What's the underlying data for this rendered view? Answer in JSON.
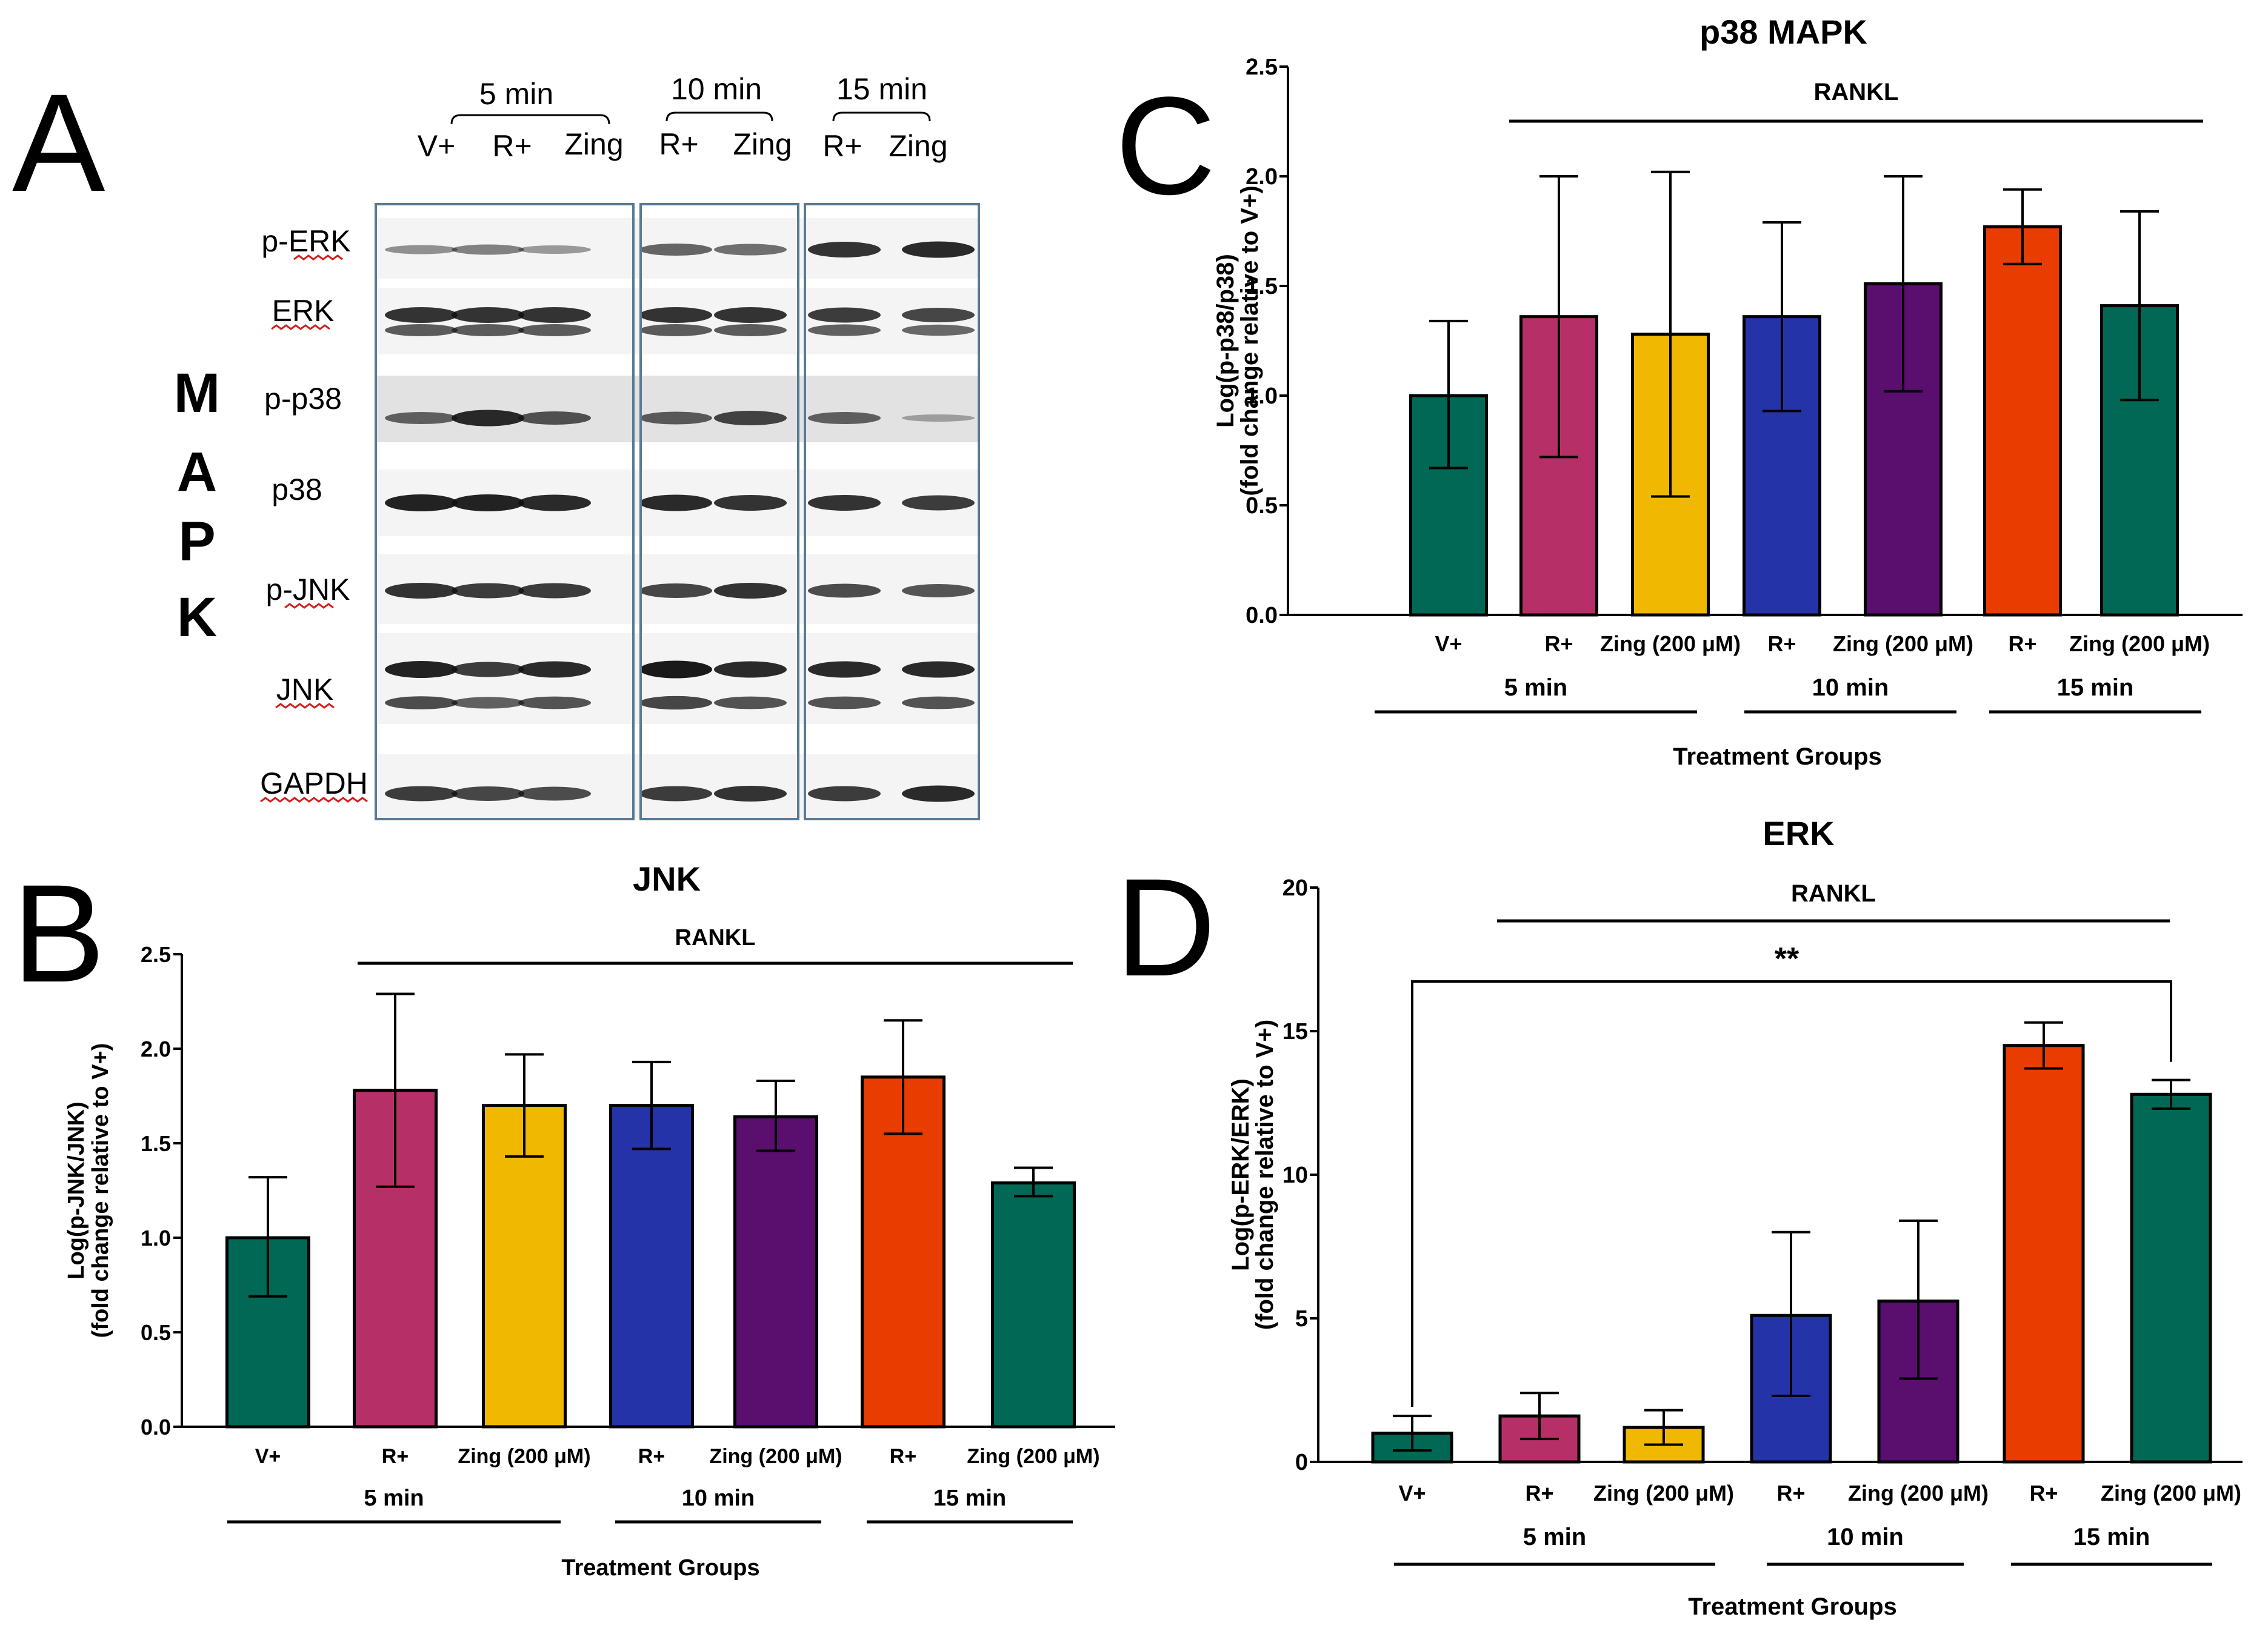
{
  "figure_type": "Western blot and bar chart panel figure",
  "panels": {
    "A": "A",
    "B": "B",
    "C": "C",
    "D": "D"
  },
  "blot": {
    "side_label": [
      "M",
      "A",
      "P",
      "K"
    ],
    "time_groups": [
      {
        "label": "5 min",
        "lanes": [
          "V+",
          "R+",
          "Zing"
        ]
      },
      {
        "label": "10 min",
        "lanes": [
          "R+",
          "Zing"
        ]
      },
      {
        "label": "15 min",
        "lanes": [
          "R+",
          "Zing"
        ]
      }
    ],
    "rows": [
      "p-ERK",
      "ERK",
      "p-p38",
      "p38",
      "p-JNK",
      "JNK",
      "GAPDH"
    ],
    "colors": {
      "band": "#111111",
      "frame": "#5a7a94"
    }
  },
  "chart_data": [
    {
      "id": "C",
      "type": "bar",
      "title": "p38 MAPK",
      "ylabel": "Log(p-p38/p38)",
      "ylabel2": "(fold change relative to V+)",
      "xlabel": "Treatment Groups",
      "bracket": "RANKL",
      "categories": [
        "V+",
        "R+",
        "Zing (200 μM)",
        "R+",
        "Zing (200 μM)",
        "R+",
        "Zing (200 μM)"
      ],
      "values": [
        1.0,
        1.36,
        1.28,
        1.36,
        1.51,
        1.77,
        1.41
      ],
      "err_low": [
        0.67,
        0.72,
        0.54,
        0.93,
        1.02,
        1.6,
        0.98
      ],
      "err_high": [
        1.34,
        2.0,
        2.02,
        1.79,
        2.0,
        1.94,
        1.84
      ],
      "colors": [
        "#006854",
        "#b63067",
        "#f0b800",
        "#2434a8",
        "#5a0e6e",
        "#e83c00",
        "#006854"
      ],
      "ylim": [
        0,
        2.5
      ],
      "yticks": [
        "0.0",
        "0.5",
        "1.0",
        "1.5",
        "2.0",
        "2.5"
      ],
      "time_groups": [
        {
          "label": "5 min",
          "from": 0,
          "to": 2
        },
        {
          "label": "10 min",
          "from": 3,
          "to": 4
        },
        {
          "label": "15 min",
          "from": 5,
          "to": 6
        }
      ]
    },
    {
      "id": "B",
      "type": "bar",
      "title": "JNK",
      "ylabel": "Log(p-JNK/JNK)",
      "ylabel2": "(fold change relative to V+)",
      "xlabel": "Treatment Groups",
      "bracket": "RANKL",
      "categories": [
        "V+",
        "R+",
        "Zing (200 μM)",
        "R+",
        "Zing (200 μM)",
        "R+",
        "Zing (200 μM)"
      ],
      "values": [
        1.0,
        1.78,
        1.7,
        1.7,
        1.64,
        1.85,
        1.29
      ],
      "err_low": [
        0.69,
        1.27,
        1.43,
        1.47,
        1.46,
        1.55,
        1.22
      ],
      "err_high": [
        1.32,
        2.29,
        1.97,
        1.93,
        1.83,
        2.15,
        1.37
      ],
      "colors": [
        "#006854",
        "#b63067",
        "#f0b800",
        "#2434a8",
        "#5a0e6e",
        "#e83c00",
        "#006854"
      ],
      "ylim": [
        0,
        2.5
      ],
      "yticks": [
        "0.0",
        "0.5",
        "1.0",
        "1.5",
        "2.0",
        "2.5"
      ],
      "time_groups": [
        {
          "label": "5 min",
          "from": 0,
          "to": 2
        },
        {
          "label": "10 min",
          "from": 3,
          "to": 4
        },
        {
          "label": "15 min",
          "from": 5,
          "to": 6
        }
      ]
    },
    {
      "id": "D",
      "type": "bar",
      "title": "ERK",
      "ylabel": "Log(p-ERK/ERK)",
      "ylabel2": "(fold change relative to V+)",
      "xlabel": "Treatment Groups",
      "bracket": "RANKL",
      "significance": {
        "label": "**",
        "from": 0,
        "to": 6
      },
      "categories": [
        "V+",
        "R+",
        "Zing (200 μM)",
        "R+",
        "Zing (200 μM)",
        "R+",
        "Zing (200 μM)"
      ],
      "values": [
        1.0,
        1.6,
        1.2,
        5.1,
        5.6,
        14.5,
        12.8
      ],
      "err_low": [
        0.4,
        0.8,
        0.6,
        2.3,
        2.9,
        13.7,
        12.3
      ],
      "err_high": [
        1.6,
        2.4,
        1.8,
        8.0,
        8.4,
        15.3,
        13.3
      ],
      "colors": [
        "#006854",
        "#b63067",
        "#f0b800",
        "#2434a8",
        "#5a0e6e",
        "#e83c00",
        "#006854"
      ],
      "ylim": [
        0,
        20
      ],
      "yticks": [
        "0",
        "5",
        "10",
        "15",
        "20"
      ],
      "time_groups": [
        {
          "label": "5 min",
          "from": 0,
          "to": 2
        },
        {
          "label": "10 min",
          "from": 3,
          "to": 4
        },
        {
          "label": "15 min",
          "from": 5,
          "to": 6
        }
      ]
    }
  ]
}
